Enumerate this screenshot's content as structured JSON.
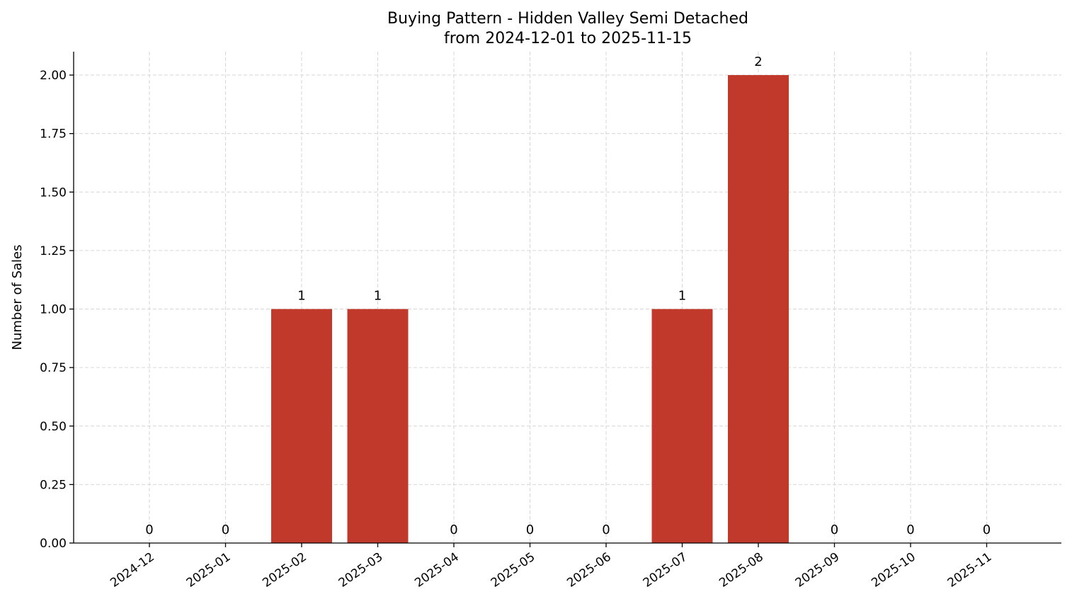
{
  "chart_data": {
    "type": "bar",
    "title": "Buying Pattern - Hidden Valley Semi Detached",
    "subtitle": "from 2024-12-01 to 2025-11-15",
    "xlabel": "",
    "ylabel": "Number of Sales",
    "categories": [
      "2024-12",
      "2025-01",
      "2025-02",
      "2025-03",
      "2025-04",
      "2025-05",
      "2025-06",
      "2025-07",
      "2025-08",
      "2025-09",
      "2025-10",
      "2025-11"
    ],
    "values": [
      0,
      0,
      1,
      1,
      0,
      0,
      0,
      1,
      2,
      0,
      0,
      0
    ],
    "data_labels": [
      "0",
      "0",
      "1",
      "1",
      "0",
      "0",
      "0",
      "1",
      "2",
      "0",
      "0",
      "0"
    ],
    "ylim": [
      0,
      2.1
    ],
    "yticks": [
      0,
      0.25,
      0.5,
      0.75,
      1.0,
      1.25,
      1.5,
      1.75,
      2.0
    ],
    "ytick_labels": [
      "0.00",
      "0.25",
      "0.50",
      "0.75",
      "1.00",
      "1.25",
      "1.50",
      "1.75",
      "2.00"
    ],
    "grid": true,
    "bar_color": "#c0392b"
  }
}
